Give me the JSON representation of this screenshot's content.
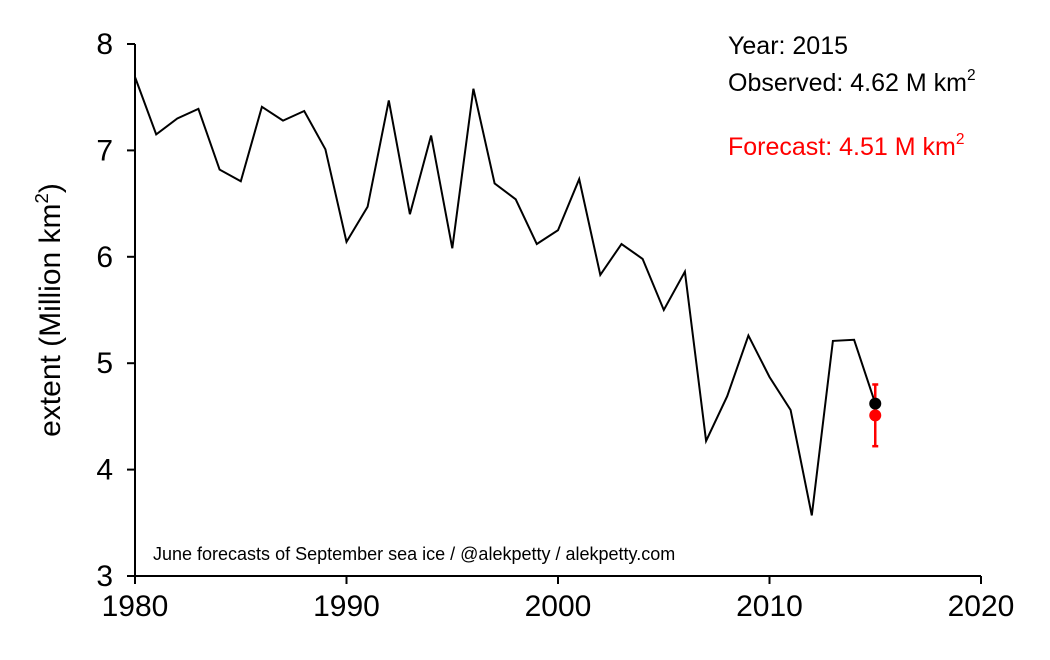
{
  "chart_data": {
    "type": "line",
    "title": "",
    "xlabel": "",
    "ylabel": {
      "main": "extent (Million km",
      "superscript": "2",
      "close": ")"
    },
    "xlim": [
      1980,
      2020
    ],
    "ylim": [
      3,
      8
    ],
    "xticks": [
      "1980",
      "1990",
      "2000",
      "2010",
      "2020"
    ],
    "yticks": [
      "3",
      "4",
      "5",
      "6",
      "7",
      "8"
    ],
    "grid": false,
    "series": [
      {
        "x": [
          1980,
          1981,
          1982,
          1983,
          1984,
          1985,
          1986,
          1987,
          1988,
          1989,
          1990,
          1991,
          1992,
          1993,
          1994,
          1995,
          1996,
          1997,
          1998,
          1999,
          2000,
          2001,
          2002,
          2003,
          2004,
          2005,
          2006,
          2007,
          2008,
          2009,
          2010,
          2011,
          2012,
          2013,
          2014,
          2015
        ],
        "y": [
          7.69,
          7.15,
          7.3,
          7.39,
          6.82,
          6.71,
          7.41,
          7.28,
          7.37,
          7.01,
          6.14,
          6.47,
          7.47,
          6.4,
          7.14,
          6.08,
          7.58,
          6.69,
          6.54,
          6.12,
          6.25,
          6.73,
          5.83,
          6.12,
          5.98,
          5.5,
          5.86,
          4.27,
          4.69,
          5.26,
          4.87,
          4.56,
          3.57,
          5.21,
          5.22,
          4.62
        ],
        "color": "#000000"
      }
    ],
    "observed_point": {
      "x": 2015,
      "y": 4.62,
      "color": "#000000"
    },
    "forecast_point": {
      "x": 2015,
      "y": 4.51,
      "err_low": 4.22,
      "err_high": 4.8,
      "color": "#ff0000"
    },
    "annotations": {
      "year_text": "Year: 2015",
      "observed_text": "Observed: 4.62 M km",
      "observed_sup": "2",
      "forecast_text": "Forecast: 4.51 M km",
      "forecast_sup": "2",
      "credit": "June forecasts of September sea ice / @alekpetty / alekpetty.com"
    }
  }
}
